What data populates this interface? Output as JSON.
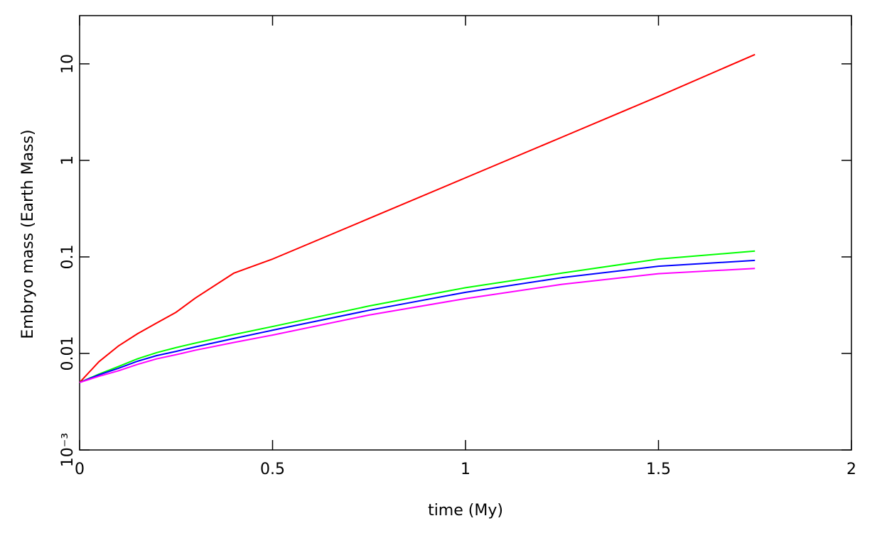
{
  "chart_data": {
    "type": "line",
    "x_label": "time (My)",
    "y_label": "Embryo mass (Earth Mass)",
    "x": [
      0,
      0.05,
      0.1,
      0.15,
      0.2,
      0.25,
      0.3,
      0.4,
      0.5,
      0.75,
      1,
      1.25,
      1.5,
      1.75
    ],
    "series": [
      {
        "color": "#ff0000",
        "values": [
          0.005,
          0.0082,
          0.0119,
          0.016,
          0.0207,
          0.0267,
          0.0375,
          0.068,
          0.095,
          0.25,
          0.66,
          1.74,
          4.6,
          12.5
        ]
      },
      {
        "color": "#00ff00",
        "values": [
          0.005,
          0.0061,
          0.0073,
          0.0088,
          0.0102,
          0.0115,
          0.0128,
          0.0157,
          0.019,
          0.031,
          0.048,
          0.068,
          0.095,
          0.115
        ]
      },
      {
        "color": "#0000ff",
        "values": [
          0.005,
          0.006,
          0.007,
          0.0083,
          0.0095,
          0.0105,
          0.0117,
          0.0143,
          0.0174,
          0.028,
          0.043,
          0.061,
          0.08,
          0.092
        ]
      },
      {
        "color": "#ff00ff",
        "values": [
          0.005,
          0.0058,
          0.0066,
          0.0077,
          0.0088,
          0.0097,
          0.0108,
          0.013,
          0.0155,
          0.025,
          0.037,
          0.052,
          0.067,
          0.076
        ]
      }
    ],
    "xlim": [
      0,
      2
    ],
    "xticks": [
      0,
      0.5,
      1,
      1.5,
      2
    ],
    "ylim": [
      0.001,
      31.6
    ],
    "y_log": true,
    "yticks": [
      {
        "value": 0.001,
        "label": "10⁻³"
      },
      0.01,
      0.1,
      1,
      10
    ]
  }
}
